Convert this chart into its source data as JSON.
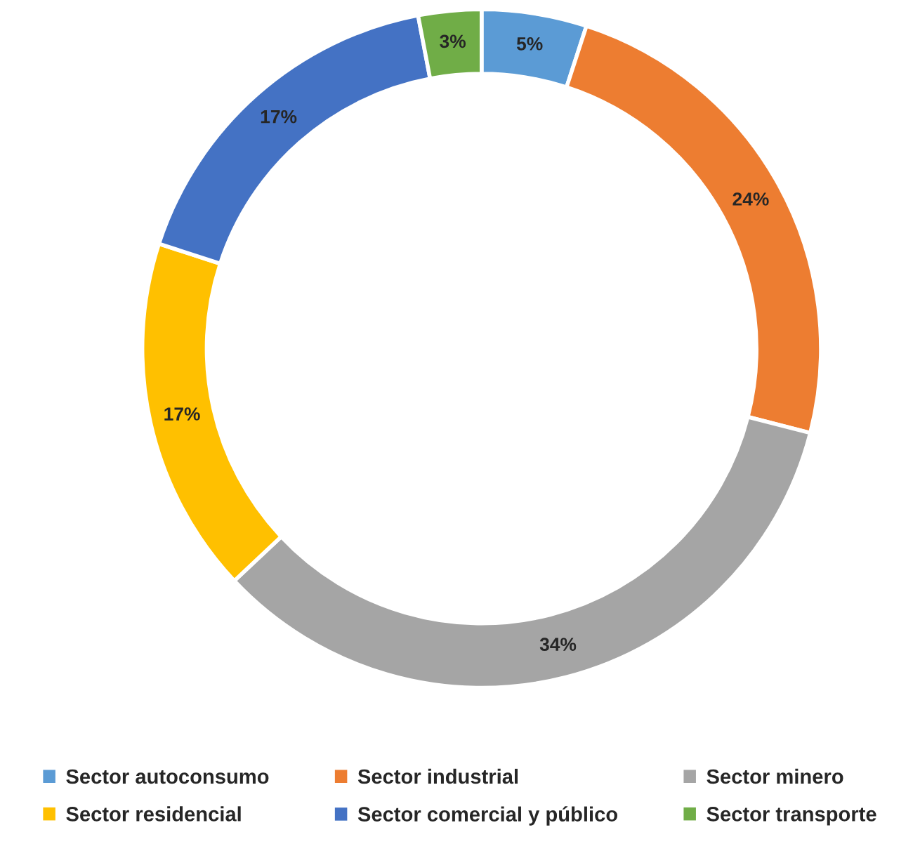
{
  "chart_data": {
    "type": "donut",
    "categories": [
      "Sector autoconsumo",
      "Sector industrial",
      "Sector minero",
      "Sector residencial",
      "Sector comercial y público",
      "Sector transporte"
    ],
    "values": [
      5,
      24,
      34,
      17,
      17,
      3
    ],
    "value_labels": [
      "5%",
      "24%",
      "34%",
      "17%",
      "17%",
      "3%"
    ],
    "colors": [
      "#5b9bd5",
      "#ed7d31",
      "#a5a5a5",
      "#ffc000",
      "#4472c4",
      "#70ad47"
    ],
    "legend": "bottom"
  }
}
